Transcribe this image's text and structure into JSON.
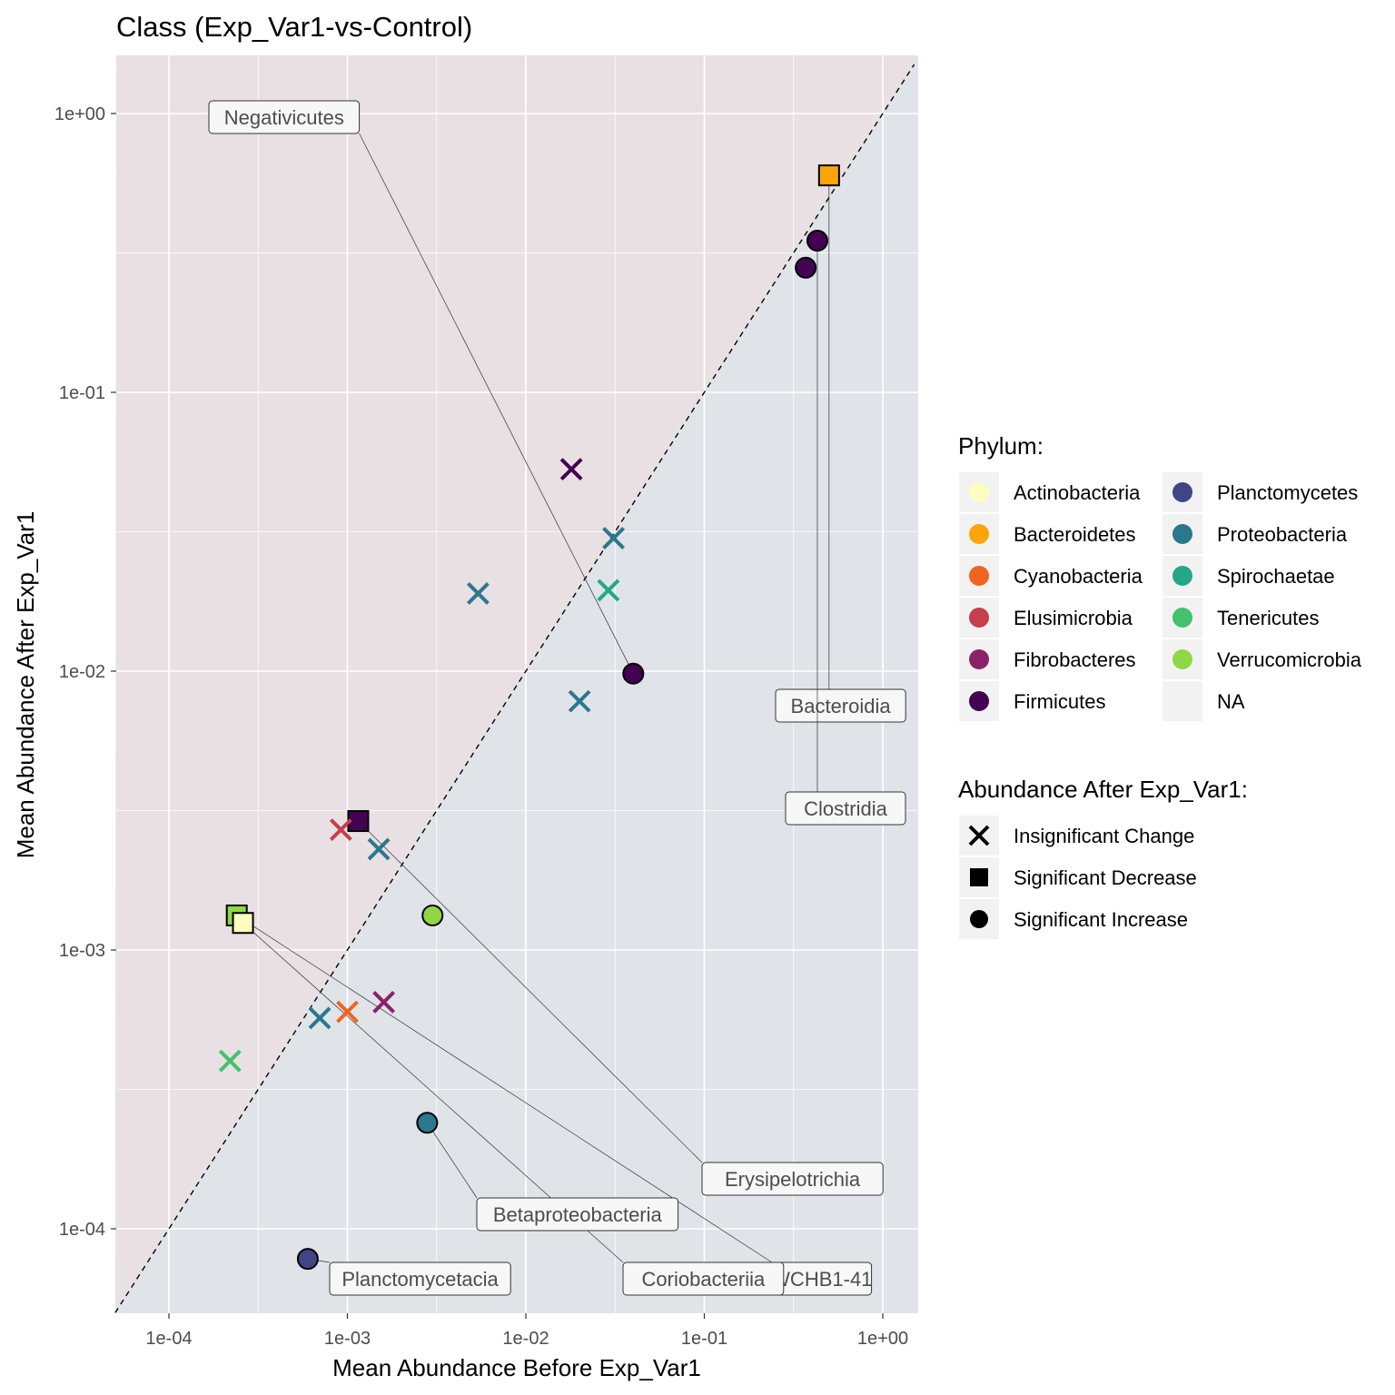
{
  "chart_data": {
    "type": "scatter",
    "title": "Class (Exp_Var1-vs-Control)",
    "xlabel": "Mean Abundance Before Exp_Var1",
    "ylabel": "Mean Abundance After Exp_Var1",
    "x_scale": "log10",
    "y_scale": "log10",
    "xlim": [
      5e-05,
      1.5
    ],
    "ylim": [
      5e-05,
      1.6
    ],
    "x_ticks": [
      0.0001,
      0.001,
      0.01,
      0.1,
      1
    ],
    "x_tick_labels": [
      "1e-04",
      "1e-03",
      "1e-02",
      "1e-01",
      "1e+00"
    ],
    "y_ticks": [
      0.0001,
      0.001,
      0.01,
      0.1,
      1
    ],
    "y_tick_labels": [
      "1e-04",
      "1e-03",
      "1e-02",
      "1e-01",
      "1e+00"
    ],
    "grid": true,
    "identity_line": true,
    "region_colors": {
      "above": "#e8e0e2",
      "below": "#e0e4e8"
    },
    "legend_position": "right",
    "phylum_legend": {
      "title": "Phylum:",
      "items": [
        {
          "label": "Actinobacteria",
          "color": "#fcfdbf"
        },
        {
          "label": "Bacteroidetes",
          "color": "#fca50a"
        },
        {
          "label": "Cyanobacteria",
          "color": "#f1631f"
        },
        {
          "label": "Elusimicrobia",
          "color": "#c73e4c"
        },
        {
          "label": "Fibrobacteres",
          "color": "#8a226a"
        },
        {
          "label": "Firmicutes",
          "color": "#440154"
        },
        {
          "label": "Planctomycetes",
          "color": "#414487"
        },
        {
          "label": "Proteobacteria",
          "color": "#2a788e"
        },
        {
          "label": "Spirochaetae",
          "color": "#22a884"
        },
        {
          "label": "Tenericutes",
          "color": "#45c06e"
        },
        {
          "label": "Verrucomicrobia",
          "color": "#8fd744"
        },
        {
          "label": "NA",
          "color": "#f2f2f2"
        }
      ]
    },
    "shape_legend": {
      "title": "Abundance After Exp_Var1:",
      "items": [
        {
          "label": "Insignificant Change",
          "shape": "cross"
        },
        {
          "label": "Significant Decrease",
          "shape": "square"
        },
        {
          "label": "Significant Increase",
          "shape": "circle"
        }
      ]
    },
    "points": [
      {
        "x": 0.5,
        "y": 0.6,
        "phylum": "Bacteroidetes",
        "shape": "square",
        "label": "Bacteroidia"
      },
      {
        "x": 0.43,
        "y": 0.35,
        "phylum": "Firmicutes",
        "shape": "circle",
        "label": "Clostridia"
      },
      {
        "x": 0.37,
        "y": 0.28,
        "phylum": "Firmicutes",
        "shape": "circle"
      },
      {
        "x": 0.04,
        "y": 0.0098,
        "phylum": "Firmicutes",
        "shape": "circle",
        "label": "Negativicutes"
      },
      {
        "x": 0.018,
        "y": 0.053,
        "phylum": "Firmicutes",
        "shape": "cross"
      },
      {
        "x": 0.031,
        "y": 0.03,
        "phylum": "Proteobacteria",
        "shape": "cross"
      },
      {
        "x": 0.0054,
        "y": 0.019,
        "phylum": "Proteobacteria",
        "shape": "cross"
      },
      {
        "x": 0.029,
        "y": 0.0195,
        "phylum": "Spirochaetae",
        "shape": "cross"
      },
      {
        "x": 0.02,
        "y": 0.0078,
        "phylum": "Proteobacteria",
        "shape": "cross"
      },
      {
        "x": 0.00115,
        "y": 0.0029,
        "phylum": "Firmicutes",
        "shape": "square",
        "label": "Erysipelotrichia"
      },
      {
        "x": 0.00092,
        "y": 0.0027,
        "phylum": "Elusimicrobia",
        "shape": "cross"
      },
      {
        "x": 0.0015,
        "y": 0.0023,
        "phylum": "Proteobacteria",
        "shape": "cross"
      },
      {
        "x": 0.00024,
        "y": 0.00133,
        "phylum": "Verrucomicrobia",
        "shape": "square",
        "label": "WCHB1-41"
      },
      {
        "x": 0.00026,
        "y": 0.00125,
        "phylum": "Actinobacteria",
        "shape": "square",
        "label": "Coriobacteriia"
      },
      {
        "x": 0.003,
        "y": 0.00133,
        "phylum": "Verrucomicrobia",
        "shape": "circle"
      },
      {
        "x": 0.0016,
        "y": 0.00065,
        "phylum": "Fibrobacteres",
        "shape": "cross"
      },
      {
        "x": 0.001,
        "y": 0.0006,
        "phylum": "Cyanobacteria",
        "shape": "cross"
      },
      {
        "x": 0.0007,
        "y": 0.00057,
        "phylum": "Proteobacteria",
        "shape": "cross"
      },
      {
        "x": 0.00022,
        "y": 0.0004,
        "phylum": "Tenericutes",
        "shape": "cross"
      },
      {
        "x": 0.0028,
        "y": 0.00024,
        "phylum": "Proteobacteria",
        "shape": "circle",
        "label": "Betaproteobacteria"
      },
      {
        "x": 0.0006,
        "y": 7.8e-05,
        "phylum": "Planctomycetes",
        "shape": "circle",
        "label": "Planctomycetacia"
      }
    ]
  }
}
